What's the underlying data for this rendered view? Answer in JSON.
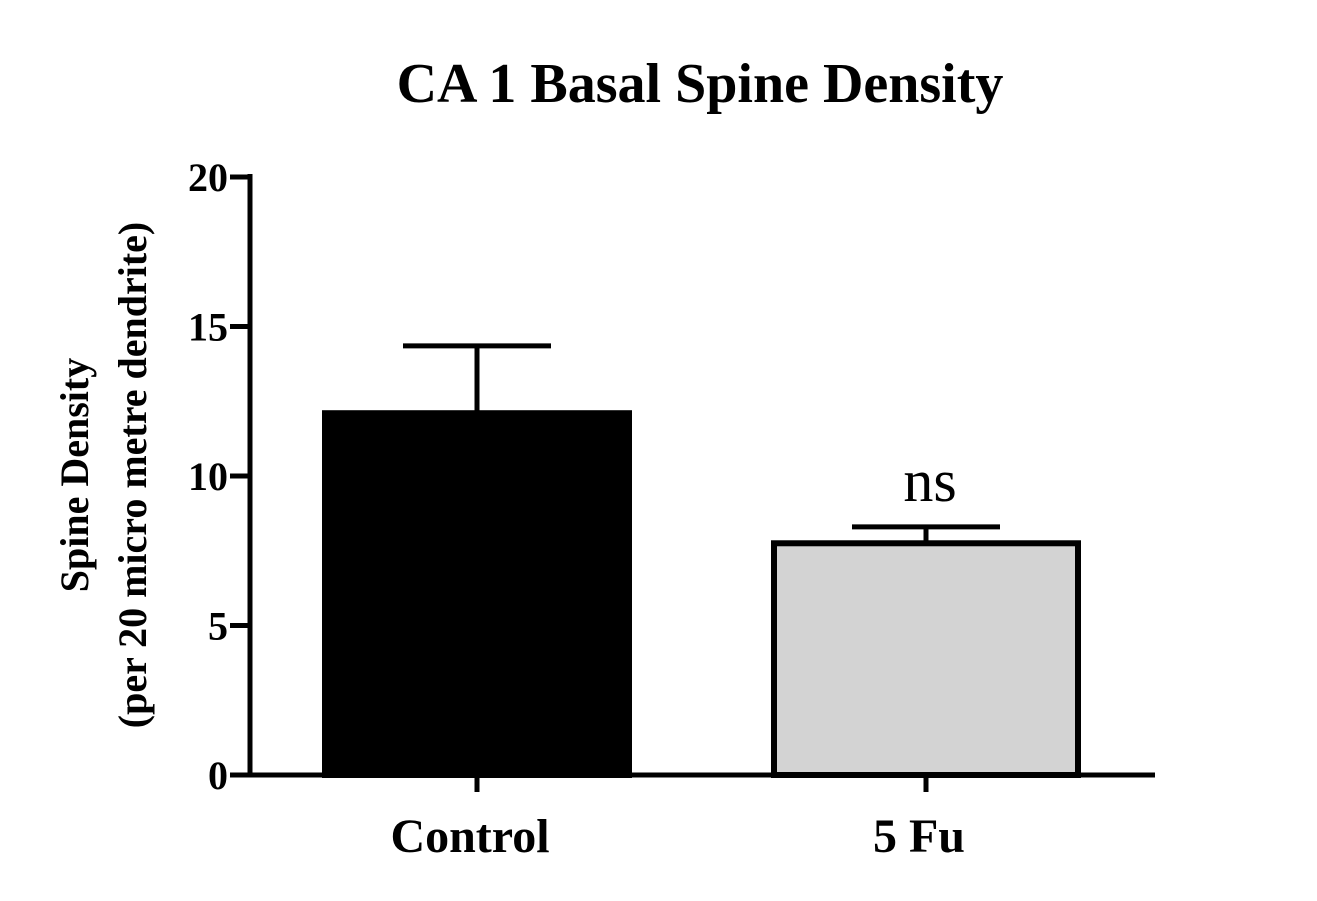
{
  "chart_data": {
    "type": "bar",
    "title": "CA 1 Basal Spine Density",
    "xlabel": "",
    "ylabel": [
      "Spine Density",
      "(per 20 micro metre dendrite)"
    ],
    "ylim": [
      0,
      20
    ],
    "yticks": [
      "0",
      "5",
      "10",
      "15",
      "20"
    ],
    "grid": false,
    "categories": [
      "Control",
      "5 Fu"
    ],
    "values": [
      12.1,
      7.75
    ],
    "errors": [
      2.25,
      0.55
    ],
    "annotations": [
      "",
      "ns"
    ],
    "colors": [
      "#000000",
      "#d3d3d3"
    ]
  }
}
